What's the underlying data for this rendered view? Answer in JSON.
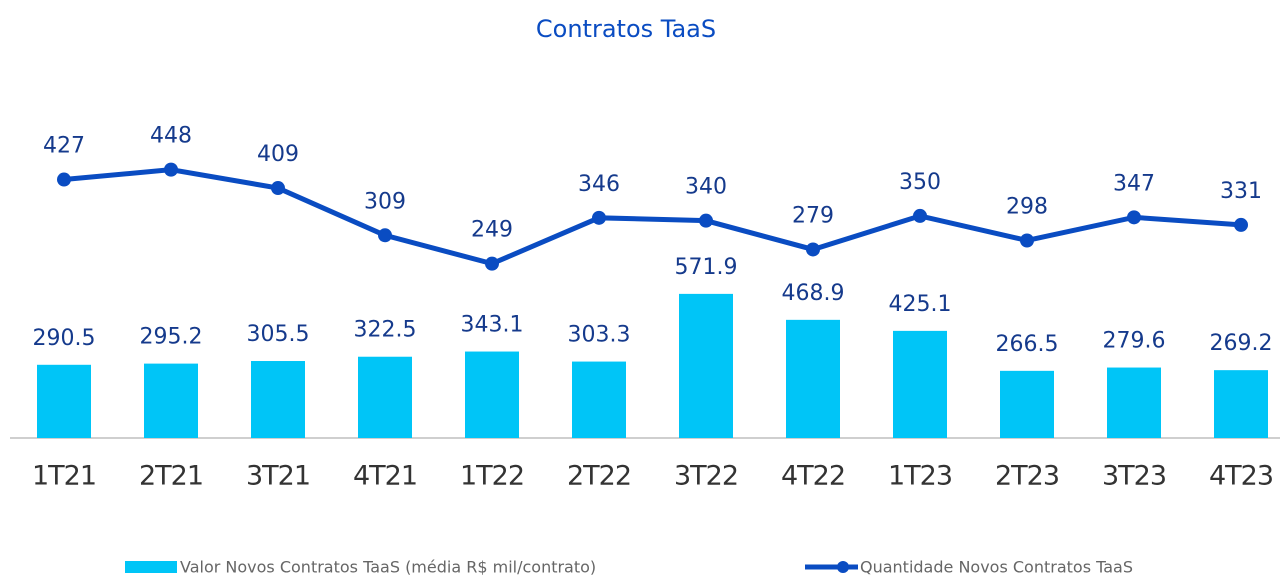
{
  "chart_data": {
    "type": "combo",
    "title": "Contratos TaaS",
    "categories": [
      "1T21",
      "2T21",
      "3T21",
      "4T21",
      "1T22",
      "2T22",
      "3T22",
      "4T22",
      "1T23",
      "2T23",
      "3T23",
      "4T23"
    ],
    "series": [
      {
        "name": "Valor Novos Contratos TaaS (média R$ mil/contrato)",
        "type": "bar",
        "axis": "y",
        "color": "#00c5f7",
        "values": [
          290.5,
          295.2,
          305.5,
          322.5,
          343.1,
          303.3,
          571.9,
          468.9,
          425.1,
          266.5,
          279.6,
          269.2
        ]
      },
      {
        "name": "Quantidade Novos Contratos TaaS",
        "type": "line",
        "axis": "y2",
        "color": "#0a4cc2",
        "values": [
          427,
          448,
          409,
          309,
          249,
          346,
          340,
          279,
          350,
          298,
          347,
          331
        ]
      }
    ],
    "ylim": [
      0,
      1500
    ],
    "y2lim": [
      -120,
      680
    ],
    "grid": false,
    "legend": "bottom"
  }
}
